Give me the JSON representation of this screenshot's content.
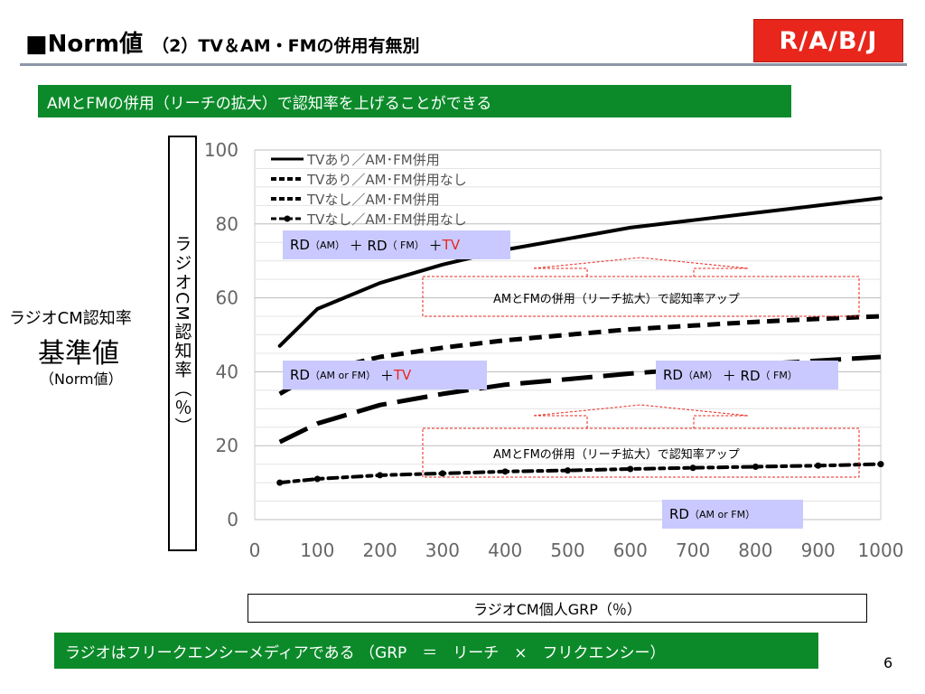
{
  "slide": {
    "title_main": "■Norm値",
    "title_sub": "（2）TV＆AM・FMの併用有無別",
    "logo_text": "R/A/B/J",
    "headline": "AMとFMの併用（リーチの拡大）で認知率を上げることができる",
    "footer": "ラジオはフリークエンシーメディアである （GRP　＝　リーチ　×　フリクエンシー）",
    "page_number": "6",
    "left_caption_1": "ラジオCM認知率",
    "left_caption_2": "基準値",
    "left_caption_3": "（Norm値）",
    "colors": {
      "brand_red": "#e8261c",
      "headline_green": "#0c8a2a",
      "label_bg": "#c9c9ff"
    }
  },
  "annotations": {
    "tv_amfm": {
      "base": "RD",
      "paren1": "（AM）",
      "plus1": "＋ RD",
      "paren2": "（ FM）",
      "plus2": "＋ ",
      "tv": "TV"
    },
    "tv_single": {
      "base": "RD",
      "paren1": "（AM or FM）",
      "plus": "＋",
      "tv": "TV"
    },
    "notv_amfm": {
      "base": "RD",
      "paren1": "（AM）",
      "plus": "＋ RD",
      "paren2": "（ FM）"
    },
    "notv_single": {
      "base": "RD",
      "paren1": "（AM or FM）"
    },
    "note_1": "AMとFMの併用（リーチ拡大）で認知率アップ",
    "note_2": "AMとFMの併用（リーチ拡大）で認知率アップ"
  },
  "chart_data": {
    "type": "line",
    "ylabel": "ラジオCM認知率（％）",
    "xlabel": "ラジオCM個人GRP（％）",
    "xlim": [
      0,
      1000
    ],
    "ylim": [
      0,
      100
    ],
    "x_ticks": [
      0,
      100,
      200,
      300,
      400,
      500,
      600,
      700,
      800,
      900,
      1000
    ],
    "y_ticks": [
      0,
      20,
      40,
      60,
      80,
      100
    ],
    "grid": "horizontal",
    "legend_position": "top-left",
    "series": [
      {
        "name": "TVあり／AM･FM併用",
        "style": "solid",
        "x": [
          40,
          100,
          200,
          300,
          400,
          500,
          600,
          700,
          800,
          900,
          1000
        ],
        "y": [
          47,
          57,
          64,
          69,
          73,
          76,
          79,
          81,
          83,
          85,
          87
        ]
      },
      {
        "name": "TVあり／AM･FM併用なし",
        "style": "short-dash",
        "x": [
          40,
          100,
          200,
          300,
          400,
          500,
          600,
          700,
          800,
          900,
          1000
        ],
        "y": [
          34,
          40,
          44,
          46.5,
          48.5,
          50,
          51.5,
          52.5,
          53.5,
          54.3,
          55
        ]
      },
      {
        "name": "TVなし／AM･FM併用",
        "style": "long-dash",
        "x": [
          40,
          100,
          200,
          300,
          400,
          500,
          600,
          700,
          800,
          900,
          1000
        ],
        "y": [
          21,
          26,
          31,
          34,
          36.5,
          38,
          39.5,
          40.8,
          42,
          43,
          44
        ]
      },
      {
        "name": "TVなし／AM･FM併用なし",
        "style": "dash-dot",
        "x": [
          40,
          100,
          200,
          300,
          400,
          500,
          600,
          700,
          800,
          900,
          1000
        ],
        "y": [
          10,
          11,
          12,
          12.5,
          13,
          13.3,
          13.7,
          14,
          14.3,
          14.6,
          15
        ]
      }
    ]
  }
}
